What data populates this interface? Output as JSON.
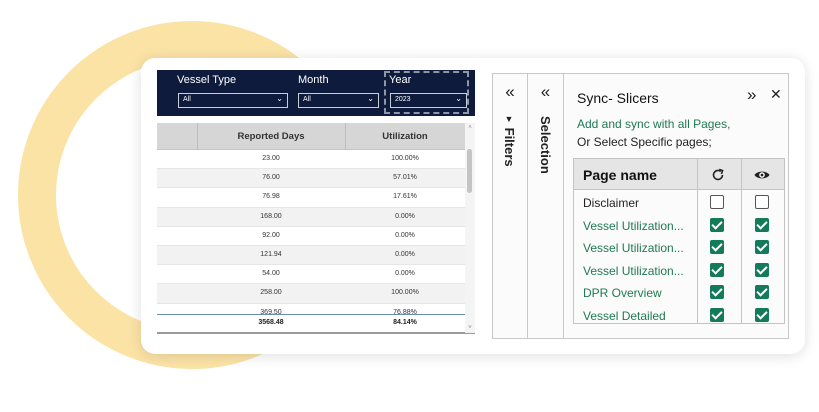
{
  "report": {
    "filters": [
      {
        "label": "Vessel Type",
        "value": "All"
      },
      {
        "label": "Month",
        "value": "All"
      },
      {
        "label": "Year",
        "value": "2023"
      }
    ],
    "columns": [
      "Reported Days",
      "Utilization"
    ],
    "rows": [
      [
        "23.00",
        "100.00%"
      ],
      [
        "76.00",
        "57.01%"
      ],
      [
        "76.98",
        "17.61%"
      ],
      [
        "168.00",
        "0.00%"
      ],
      [
        "92.00",
        "0.00%"
      ],
      [
        "121.94",
        "0.00%"
      ],
      [
        "54.00",
        "0.00%"
      ],
      [
        "258.00",
        "100.00%"
      ],
      [
        "369.50",
        "76.88%"
      ]
    ],
    "total": [
      "3568.48",
      "84.14%"
    ],
    "scroll_up": "˄",
    "scroll_down": "˅"
  },
  "panes": {
    "filters_collapse": "«",
    "filters_label": "Filters",
    "filters_icon": "funnel-icon",
    "selection_collapse": "«",
    "selection_label": "Selection",
    "sync": {
      "title": "Sync- Slicers",
      "expand": "»",
      "close": "✕",
      "desc_line1": "Add and sync with all Pages,",
      "desc_line2": "Or Select Specific pages;",
      "col_page": "Page name",
      "col_sync_icon": "refresh-icon",
      "col_visible_icon": "eye-icon",
      "pages": [
        {
          "name": "Disclaimer",
          "sync": false,
          "visible": false,
          "link": false
        },
        {
          "name": "Vessel Utilization...",
          "sync": true,
          "visible": true,
          "link": true
        },
        {
          "name": "Vessel Utilization...",
          "sync": true,
          "visible": true,
          "link": true
        },
        {
          "name": "Vessel Utilization...",
          "sync": true,
          "visible": true,
          "link": true
        },
        {
          "name": "DPR Overview",
          "sync": true,
          "visible": true,
          "link": true
        },
        {
          "name": "Vessel Detailed",
          "sync": true,
          "visible": true,
          "link": true
        }
      ]
    }
  },
  "colors": {
    "ring": "#fbe3a6",
    "filter_bar": "#0e1b3d",
    "green": "#137a5a",
    "link_green": "#1f7a52"
  }
}
